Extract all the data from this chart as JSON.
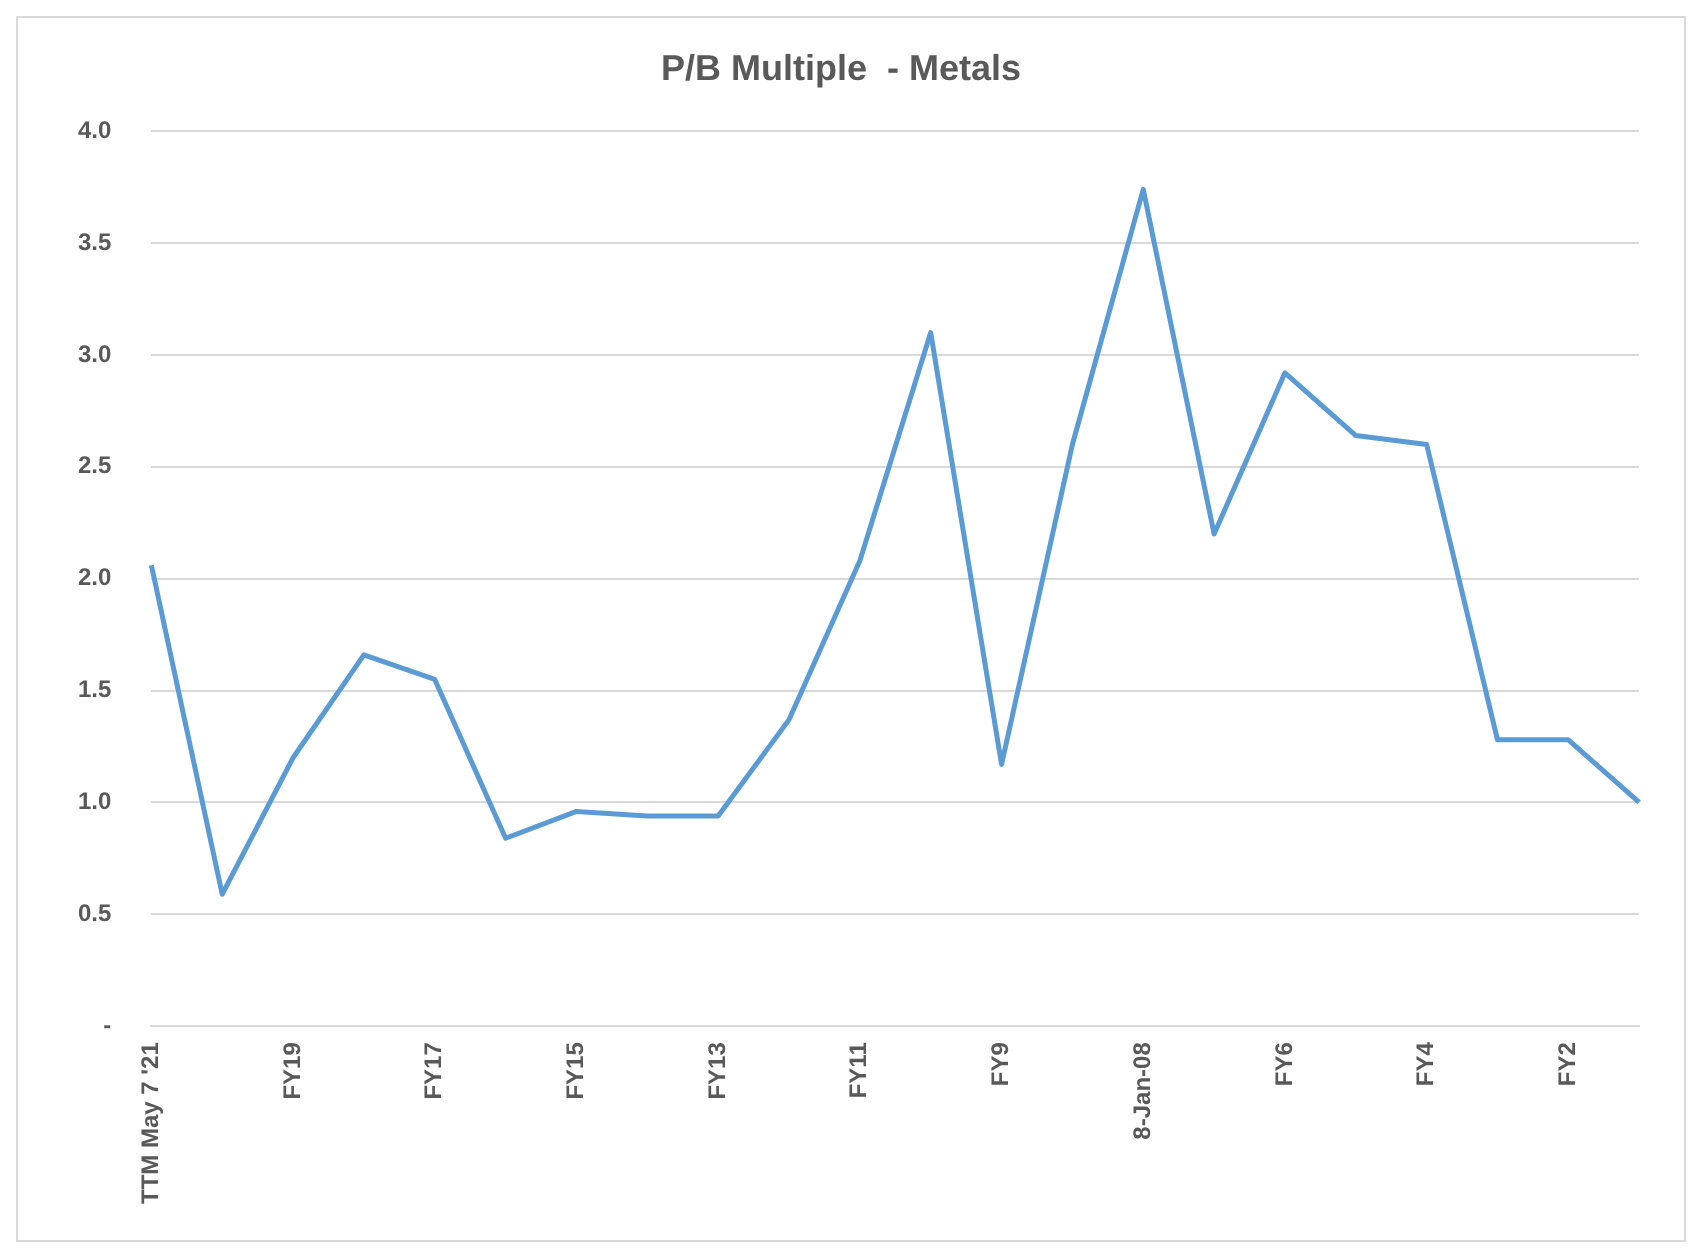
{
  "chart_data": {
    "type": "line",
    "title": "P/B Multiple  - Metals",
    "categories": [
      "TTM May 7 '21",
      null,
      "FY19",
      null,
      "FY17",
      null,
      "FY15",
      null,
      "FY13",
      null,
      "FY11",
      null,
      "FY9",
      null,
      "8-Jan-08",
      null,
      "FY6",
      null,
      "FY4",
      null,
      "FY2",
      null
    ],
    "series": [
      {
        "color": "#5b9bd5",
        "values": [
          2.06,
          0.59,
          1.2,
          1.66,
          1.55,
          0.84,
          0.96,
          0.94,
          0.94,
          1.37,
          2.08,
          3.1,
          1.17,
          2.6,
          3.74,
          2.2,
          2.92,
          2.64,
          2.6,
          1.28,
          1.28,
          1.0
        ]
      }
    ],
    "ylim": [
      0,
      4
    ],
    "yticks": [
      {
        "value": 0,
        "label": "-"
      },
      0.5,
      {
        "value": 1,
        "label": "1.0"
      },
      1.5,
      {
        "value": 2,
        "label": "2.0"
      },
      2.5,
      {
        "value": 3,
        "label": "3.0"
      },
      3.5,
      {
        "value": 4,
        "label": "4.0"
      }
    ],
    "grid": "y",
    "legend": false,
    "marker": "none",
    "line_style": "solid"
  }
}
